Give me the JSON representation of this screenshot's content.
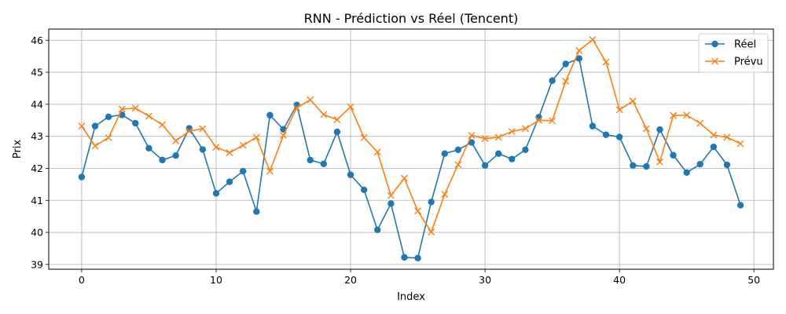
{
  "chart_data": {
    "type": "line",
    "title": "RNN - Prédiction vs Réel (Tencent)",
    "xlabel": "Index",
    "ylabel": "Prix",
    "xlim": [
      -2.45,
      51.45
    ],
    "ylim": [
      38.85,
      46.35
    ],
    "xticks": [
      0,
      10,
      20,
      30,
      40,
      50
    ],
    "yticks": [
      39,
      40,
      41,
      42,
      43,
      44,
      45,
      46
    ],
    "grid": true,
    "legend_position": "upper right",
    "x": [
      0,
      1,
      2,
      3,
      4,
      5,
      6,
      7,
      8,
      9,
      10,
      11,
      12,
      13,
      14,
      15,
      16,
      17,
      18,
      19,
      20,
      21,
      22,
      23,
      24,
      25,
      26,
      27,
      28,
      29,
      30,
      31,
      32,
      33,
      34,
      35,
      36,
      37,
      38,
      39,
      40,
      41,
      42,
      43,
      44,
      45,
      46,
      47,
      48,
      49
    ],
    "series": [
      {
        "name": "Réel",
        "color": "#1f77b4",
        "marker": "circle",
        "values": [
          41.73,
          43.32,
          43.61,
          43.67,
          43.41,
          42.63,
          42.26,
          42.4,
          43.25,
          42.59,
          41.22,
          41.58,
          41.91,
          40.65,
          43.66,
          43.22,
          43.98,
          42.26,
          42.14,
          43.14,
          41.8,
          41.33,
          40.08,
          40.9,
          39.22,
          39.2,
          40.95,
          42.46,
          42.58,
          42.81,
          42.09,
          42.46,
          42.29,
          42.58,
          43.6,
          44.74,
          45.26,
          45.43,
          43.32,
          43.05,
          42.98,
          42.09,
          42.06,
          43.21,
          42.41,
          41.87,
          42.13,
          42.67,
          42.11,
          40.85
        ]
      },
      {
        "name": "Prévu",
        "color": "#ff7f0e",
        "marker": "x",
        "values": [
          43.32,
          42.7,
          42.96,
          43.85,
          43.88,
          43.63,
          43.36,
          42.86,
          43.16,
          43.24,
          42.66,
          42.49,
          42.72,
          42.97,
          41.91,
          43.03,
          43.89,
          44.14,
          43.68,
          43.52,
          43.92,
          42.96,
          42.51,
          41.15,
          41.69,
          40.67,
          40.01,
          41.19,
          42.12,
          43.03,
          42.93,
          42.97,
          43.15,
          43.24,
          43.5,
          43.49,
          44.72,
          45.68,
          46.02,
          45.32,
          43.83,
          44.1,
          43.24,
          42.2,
          43.65,
          43.66,
          43.41,
          43.04,
          42.97,
          42.77
        ]
      }
    ]
  }
}
